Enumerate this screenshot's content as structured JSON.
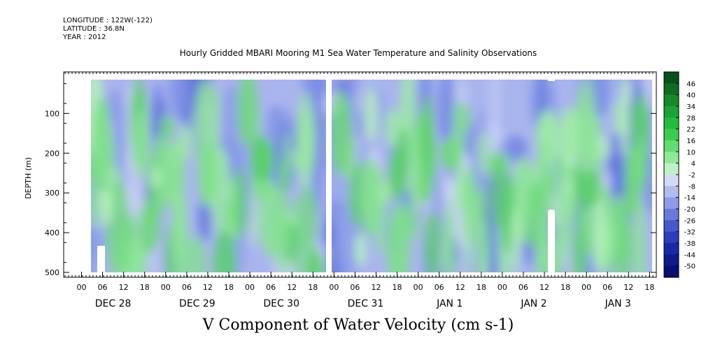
{
  "header": {
    "longitude": "LONGITUDE : 122W(-122)",
    "latitude": "LATITUDE : 36.8N",
    "year": "YEAR : 2012"
  },
  "chart_data": {
    "type": "heatmap",
    "title": "Hourly Gridded MBARI Mooring M1 Sea Water Temperature and Salinity Observations",
    "bottom_title": "V Component of Water Velocity (cm s-1)",
    "ylabel": "DEPTH (m)",
    "y_ticks": [
      100,
      200,
      300,
      400,
      500
    ],
    "ylim": [
      500,
      15
    ],
    "x_hour_ticks": [
      "00",
      "06",
      "12",
      "18",
      "00",
      "06",
      "12",
      "18",
      "00",
      "06",
      "12",
      "18",
      "00",
      "06",
      "12",
      "18",
      "00",
      "06",
      "12",
      "18",
      "00",
      "06",
      "12",
      "18",
      "00",
      "06",
      "12",
      "18"
    ],
    "x_day_labels": [
      "DEC 28",
      "DEC 29",
      "DEC 30",
      "DEC 31",
      "JAN  1",
      "JAN  2",
      "JAN  3"
    ],
    "colorbar": {
      "levels": [
        46,
        40,
        34,
        28,
        22,
        16,
        10,
        4,
        -2,
        -8,
        -14,
        -20,
        -26,
        -32,
        -38,
        -44,
        -50
      ],
      "colors": [
        "#0b4f1a",
        "#106b23",
        "#15892c",
        "#1aa336",
        "#22bb40",
        "#3ccc52",
        "#62dc70",
        "#8fe99a",
        "#bdf2c4",
        "#d4daf6",
        "#b3bcef",
        "#8f9be6",
        "#6b7ad9",
        "#4659cc",
        "#2b3ebd",
        "#1a2aa6",
        "#101a8c",
        "#0a0f6f"
      ]
    },
    "missing_data": [
      "vertical gap at the start of DEC 31",
      "white gap below 300 m near JAN 2 14:00"
    ],
    "grid": false
  }
}
